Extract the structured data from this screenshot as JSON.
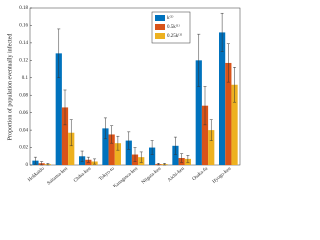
{
  "chart_data": {
    "type": "bar",
    "ylabel": "Proportion of population eventually infected",
    "categories": [
      "Hokkaido",
      "Saitama-ken",
      "Chiba-ken",
      "Tokyo-to",
      "Kanagawa-ken",
      "Niigata-ken",
      "Aichi-ken",
      "Osaka-fu",
      "Hyogo-ken"
    ],
    "series": [
      {
        "name": "k⁽¹⁾",
        "color": "#0072bd",
        "values": [
          0.005,
          0.128,
          0.01,
          0.042,
          0.028,
          0.02,
          0.022,
          0.12,
          0.152
        ],
        "errors": [
          0.004,
          0.028,
          0.006,
          0.012,
          0.01,
          0.008,
          0.01,
          0.03,
          0.022
        ]
      },
      {
        "name": "0.5k⁽¹⁾",
        "color": "#d95319",
        "values": [
          0.002,
          0.066,
          0.006,
          0.035,
          0.012,
          0.001,
          0.008,
          0.068,
          0.117
        ],
        "errors": [
          0.002,
          0.02,
          0.003,
          0.01,
          0.008,
          0.001,
          0.005,
          0.022,
          0.022
        ]
      },
      {
        "name": "0.25k⁽¹⁾",
        "color": "#edb120",
        "values": [
          0.001,
          0.037,
          0.004,
          0.025,
          0.009,
          0.001,
          0.007,
          0.04,
          0.092
        ],
        "errors": [
          0.001,
          0.015,
          0.003,
          0.008,
          0.006,
          0.001,
          0.004,
          0.012,
          0.02
        ]
      }
    ],
    "ylim": [
      0,
      0.18
    ],
    "yticks": [
      0,
      0.02,
      0.04,
      0.06,
      0.08,
      0.1,
      0.12,
      0.14,
      0.16,
      0.18
    ],
    "legend": "top-right"
  }
}
